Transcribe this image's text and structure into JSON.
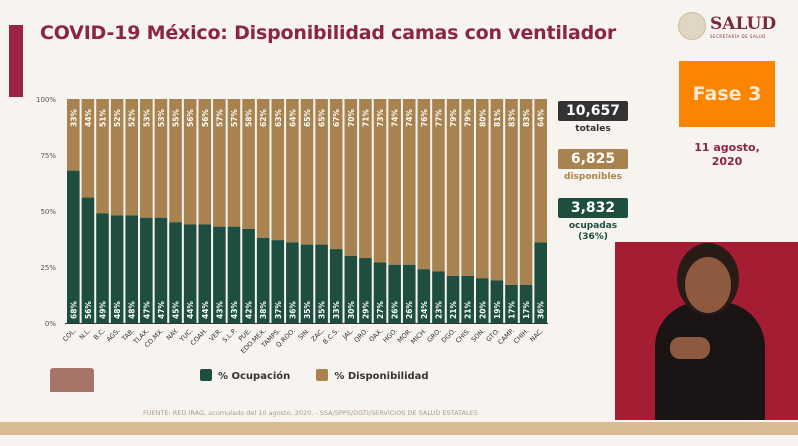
{
  "header": {
    "title": "COVID-19 México: Disponibilidad camas con ventilador",
    "logo_text": "SALUD",
    "logo_subtext": "SECRETARÍA DE SALUD"
  },
  "phase": {
    "label": "Fase 3",
    "color": "#fb8500"
  },
  "date": {
    "line1": "11 agosto,",
    "line2": "2020"
  },
  "stats": {
    "total": {
      "value": "10,657",
      "label": "totales",
      "color": "#333333"
    },
    "available": {
      "value": "6,825",
      "label": "disponibles",
      "color": "#a8834f"
    },
    "occupied": {
      "value": "3,832",
      "label": "ocupadas",
      "label2": "(36%)",
      "color": "#1d4e40"
    }
  },
  "footer": {
    "source": "FUENTE: RED IRAG, acumulado del 10 agosto, 2020. -  SSA/SPPS/DGTI/SERVICIOS DE SALUD ESTATALES"
  },
  "chart_data": {
    "type": "bar",
    "stacked": true,
    "orientation": "vertical",
    "categories": [
      "COL.",
      "N.L.",
      "B.C.",
      "AGS.",
      "TAB.",
      "TLAX.",
      "CD.MX.",
      "NAY.",
      "YUC.",
      "COAH.",
      "VER.",
      "S.L.P.",
      "PUE.",
      "EDO.MEX.",
      "TAMPS.",
      "Q.ROO.",
      "SIN.",
      "ZAC.",
      "B.C.S.",
      "JAL.",
      "QRO.",
      "OAX.",
      "HGO.",
      "MOR.",
      "MICH.",
      "GRO.",
      "DGO.",
      "CHIS.",
      "SON.",
      "GTO.",
      "CAMP.",
      "CHIH.",
      "NAC."
    ],
    "series": [
      {
        "name": "% Ocupación",
        "color": "#1d4e40",
        "values": [
          68,
          56,
          49,
          48,
          48,
          47,
          47,
          45,
          44,
          44,
          43,
          43,
          42,
          38,
          37,
          36,
          35,
          35,
          33,
          30,
          29,
          27,
          26,
          26,
          24,
          23,
          21,
          21,
          20,
          19,
          17,
          17,
          36
        ]
      },
      {
        "name": "% Disponibilidad",
        "color": "#a8834f",
        "values": [
          33,
          44,
          51,
          52,
          52,
          53,
          53,
          55,
          56,
          56,
          57,
          57,
          58,
          62,
          63,
          64,
          65,
          65,
          67,
          70,
          71,
          73,
          74,
          74,
          76,
          77,
          79,
          79,
          80,
          81,
          83,
          83,
          64
        ]
      }
    ],
    "yticks": [
      "0%",
      "25%",
      "50%",
      "75%",
      "100%"
    ],
    "ylim": [
      0,
      100
    ],
    "legend": "bottom",
    "grid": false
  }
}
